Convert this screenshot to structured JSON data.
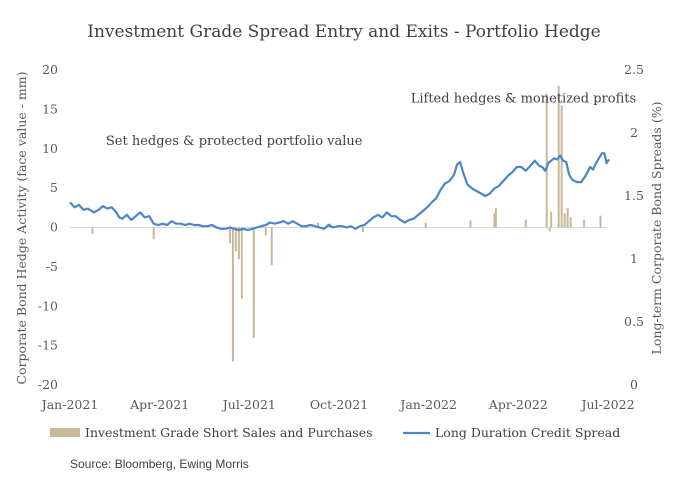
{
  "chart_data": {
    "type": "bar+line",
    "title": "Investment Grade Spread Entry and Exits - Portfolio Hedge",
    "ylabel_left": "Corporate Bond Hedge Activity (face value - mm)",
    "ylabel_right": "Long-term Corporate Bond Spreads (%)",
    "ylim_left": [
      -20,
      20
    ],
    "ylim_right": [
      0,
      2.5
    ],
    "yticks_left": [
      "20",
      "15",
      "10",
      "5",
      "0",
      "-5",
      "-10",
      "-15",
      "-20"
    ],
    "yticks_right": [
      "2.5",
      "2",
      "1.5",
      "1",
      "0.5",
      "0"
    ],
    "x_tick_labels": [
      "Jan-2021",
      "Apr-2021",
      "Jul-2021",
      "Oct-2021",
      "Jan-2022",
      "Apr-2022",
      "Jul-2022"
    ],
    "x_range_months": [
      0,
      18
    ],
    "annotations": [
      {
        "text": "Set hedges & protected portfolio value",
        "x_month": 1.2,
        "y_left": 10.5
      },
      {
        "text": "Lifted hedges & monetized profits",
        "x_month": 11.4,
        "y_left": 15.9
      }
    ],
    "series": [
      {
        "name": "Investment Grade Short Sales and Purchases",
        "type": "bar",
        "axis": "left",
        "color": "#c8b898",
        "points": [
          {
            "x": 0.75,
            "y": -0.8
          },
          {
            "x": 2.8,
            "y": -1.5
          },
          {
            "x": 5.35,
            "y": -2.0
          },
          {
            "x": 5.45,
            "y": -17.0
          },
          {
            "x": 5.55,
            "y": -3.0
          },
          {
            "x": 5.65,
            "y": -4.0
          },
          {
            "x": 5.75,
            "y": -9.0
          },
          {
            "x": 6.15,
            "y": -14.0
          },
          {
            "x": 6.55,
            "y": -1.0
          },
          {
            "x": 6.75,
            "y": -4.8
          },
          {
            "x": 8.3,
            "y": 0.6
          },
          {
            "x": 8.7,
            "y": 0.5
          },
          {
            "x": 9.8,
            "y": -0.6
          },
          {
            "x": 11.9,
            "y": 0.6
          },
          {
            "x": 13.4,
            "y": 0.9
          },
          {
            "x": 14.2,
            "y": 1.8
          },
          {
            "x": 14.25,
            "y": 2.5
          },
          {
            "x": 15.25,
            "y": 1.0
          },
          {
            "x": 15.95,
            "y": 17.0
          },
          {
            "x": 16.05,
            "y": -0.5
          },
          {
            "x": 16.1,
            "y": 2.0
          },
          {
            "x": 16.35,
            "y": 18.0
          },
          {
            "x": 16.45,
            "y": 15.5
          },
          {
            "x": 16.55,
            "y": 1.8
          },
          {
            "x": 16.65,
            "y": 2.5
          },
          {
            "x": 16.75,
            "y": 1.3
          },
          {
            "x": 17.2,
            "y": 1.0
          },
          {
            "x": 17.75,
            "y": 1.5
          }
        ]
      },
      {
        "name": "Long Duration Credit Spread",
        "type": "line",
        "axis": "right",
        "color": "#4a86c8",
        "points": [
          [
            0.0,
            1.45
          ],
          [
            0.15,
            1.41
          ],
          [
            0.3,
            1.43
          ],
          [
            0.45,
            1.39
          ],
          [
            0.6,
            1.4
          ],
          [
            0.8,
            1.37
          ],
          [
            0.95,
            1.39
          ],
          [
            1.1,
            1.42
          ],
          [
            1.25,
            1.4
          ],
          [
            1.4,
            1.41
          ],
          [
            1.55,
            1.37
          ],
          [
            1.65,
            1.33
          ],
          [
            1.75,
            1.32
          ],
          [
            1.9,
            1.35
          ],
          [
            2.05,
            1.31
          ],
          [
            2.2,
            1.34
          ],
          [
            2.35,
            1.37
          ],
          [
            2.5,
            1.33
          ],
          [
            2.65,
            1.34
          ],
          [
            2.8,
            1.28
          ],
          [
            2.95,
            1.27
          ],
          [
            3.1,
            1.28
          ],
          [
            3.25,
            1.27
          ],
          [
            3.4,
            1.3
          ],
          [
            3.55,
            1.28
          ],
          [
            3.7,
            1.28
          ],
          [
            3.85,
            1.27
          ],
          [
            4.0,
            1.28
          ],
          [
            4.15,
            1.27
          ],
          [
            4.3,
            1.27
          ],
          [
            4.45,
            1.26
          ],
          [
            4.6,
            1.26
          ],
          [
            4.75,
            1.27
          ],
          [
            4.9,
            1.25
          ],
          [
            5.05,
            1.24
          ],
          [
            5.2,
            1.24
          ],
          [
            5.35,
            1.25
          ],
          [
            5.5,
            1.24
          ],
          [
            5.65,
            1.23
          ],
          [
            5.8,
            1.24
          ],
          [
            5.95,
            1.23
          ],
          [
            6.1,
            1.24
          ],
          [
            6.25,
            1.25
          ],
          [
            6.4,
            1.26
          ],
          [
            6.55,
            1.27
          ],
          [
            6.7,
            1.29
          ],
          [
            6.85,
            1.28
          ],
          [
            7.0,
            1.29
          ],
          [
            7.15,
            1.3
          ],
          [
            7.3,
            1.28
          ],
          [
            7.45,
            1.3
          ],
          [
            7.6,
            1.28
          ],
          [
            7.75,
            1.26
          ],
          [
            7.9,
            1.26
          ],
          [
            8.05,
            1.27
          ],
          [
            8.2,
            1.26
          ],
          [
            8.35,
            1.25
          ],
          [
            8.5,
            1.24
          ],
          [
            8.65,
            1.27
          ],
          [
            8.8,
            1.25
          ],
          [
            8.95,
            1.26
          ],
          [
            9.1,
            1.26
          ],
          [
            9.25,
            1.25
          ],
          [
            9.4,
            1.26
          ],
          [
            9.55,
            1.24
          ],
          [
            9.7,
            1.26
          ],
          [
            9.85,
            1.27
          ],
          [
            10.0,
            1.3
          ],
          [
            10.15,
            1.33
          ],
          [
            10.3,
            1.35
          ],
          [
            10.45,
            1.33
          ],
          [
            10.6,
            1.37
          ],
          [
            10.75,
            1.34
          ],
          [
            10.9,
            1.34
          ],
          [
            11.05,
            1.31
          ],
          [
            11.2,
            1.29
          ],
          [
            11.35,
            1.31
          ],
          [
            11.5,
            1.32
          ],
          [
            11.65,
            1.35
          ],
          [
            11.8,
            1.38
          ],
          [
            11.95,
            1.41
          ],
          [
            12.1,
            1.45
          ],
          [
            12.25,
            1.48
          ],
          [
            12.4,
            1.55
          ],
          [
            12.55,
            1.6
          ],
          [
            12.7,
            1.62
          ],
          [
            12.85,
            1.67
          ],
          [
            12.95,
            1.75
          ],
          [
            13.05,
            1.77
          ],
          [
            13.15,
            1.69
          ],
          [
            13.3,
            1.59
          ],
          [
            13.45,
            1.56
          ],
          [
            13.6,
            1.54
          ],
          [
            13.75,
            1.52
          ],
          [
            13.9,
            1.5
          ],
          [
            14.05,
            1.52
          ],
          [
            14.2,
            1.56
          ],
          [
            14.35,
            1.58
          ],
          [
            14.5,
            1.62
          ],
          [
            14.65,
            1.66
          ],
          [
            14.8,
            1.69
          ],
          [
            14.95,
            1.73
          ],
          [
            15.1,
            1.73
          ],
          [
            15.25,
            1.7
          ],
          [
            15.4,
            1.74
          ],
          [
            15.55,
            1.78
          ],
          [
            15.7,
            1.74
          ],
          [
            15.8,
            1.73
          ],
          [
            15.9,
            1.7
          ],
          [
            16.0,
            1.76
          ],
          [
            16.1,
            1.78
          ],
          [
            16.2,
            1.8
          ],
          [
            16.3,
            1.79
          ],
          [
            16.4,
            1.82
          ],
          [
            16.5,
            1.78
          ],
          [
            16.6,
            1.77
          ],
          [
            16.7,
            1.67
          ],
          [
            16.8,
            1.63
          ],
          [
            16.95,
            1.61
          ],
          [
            17.1,
            1.61
          ],
          [
            17.25,
            1.66
          ],
          [
            17.4,
            1.73
          ],
          [
            17.5,
            1.71
          ],
          [
            17.6,
            1.76
          ],
          [
            17.7,
            1.8
          ],
          [
            17.8,
            1.84
          ],
          [
            17.88,
            1.84
          ],
          [
            17.95,
            1.76
          ],
          [
            18.0,
            1.78
          ],
          [
            18.05,
            1.79
          ]
        ]
      }
    ]
  },
  "source": "Source: Bloomberg, Ewing Morris"
}
